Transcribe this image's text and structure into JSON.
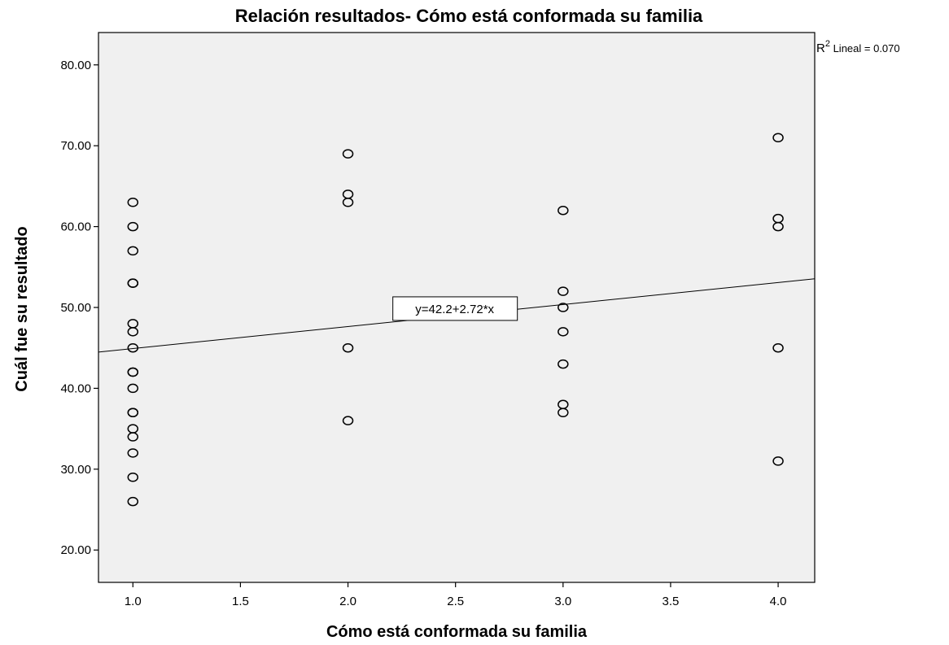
{
  "chart_data": {
    "type": "scatter",
    "title": "Relación resultados- Cómo está conformada su familia",
    "xlabel": "Cómo está conformada su familia",
    "ylabel": "Cuál fue su resultado",
    "xlim": [
      0.84,
      4.17
    ],
    "ylim": [
      16.0,
      84.0
    ],
    "x_ticks": [
      "1.0",
      "1.5",
      "2.0",
      "2.5",
      "3.0",
      "3.5",
      "4.0"
    ],
    "x_tick_values": [
      1.0,
      1.5,
      2.0,
      2.5,
      3.0,
      3.5,
      4.0
    ],
    "y_ticks": [
      "20.00",
      "30.00",
      "40.00",
      "50.00",
      "60.00",
      "70.00",
      "80.00"
    ],
    "y_tick_values": [
      20,
      30,
      40,
      50,
      60,
      70,
      80
    ],
    "grid": false,
    "points": [
      [
        1,
        63
      ],
      [
        1,
        60
      ],
      [
        1,
        57
      ],
      [
        1,
        53
      ],
      [
        1,
        53
      ],
      [
        1,
        48
      ],
      [
        1,
        47
      ],
      [
        1,
        45
      ],
      [
        1,
        42
      ],
      [
        1,
        42
      ],
      [
        1,
        40
      ],
      [
        1,
        37
      ],
      [
        1,
        37
      ],
      [
        1,
        35
      ],
      [
        1,
        34
      ],
      [
        1,
        32
      ],
      [
        1,
        29
      ],
      [
        1,
        26
      ],
      [
        2,
        69
      ],
      [
        2,
        64
      ],
      [
        2,
        63
      ],
      [
        2,
        45
      ],
      [
        2,
        36
      ],
      [
        3,
        62
      ],
      [
        3,
        52
      ],
      [
        3,
        50
      ],
      [
        3,
        47
      ],
      [
        3,
        43
      ],
      [
        3,
        38
      ],
      [
        3,
        37
      ],
      [
        4,
        71
      ],
      [
        4,
        61
      ],
      [
        4,
        60
      ],
      [
        4,
        45
      ],
      [
        4,
        31
      ]
    ],
    "fit_line": {
      "intercept": 42.2,
      "slope": 2.72
    },
    "fit_label": "y=42.2+2.72*x",
    "r2_label": {
      "prefix": "R",
      "superscript": "2",
      "text": " Lineal = 0.070"
    },
    "plot_background": "#f0f0f0"
  }
}
